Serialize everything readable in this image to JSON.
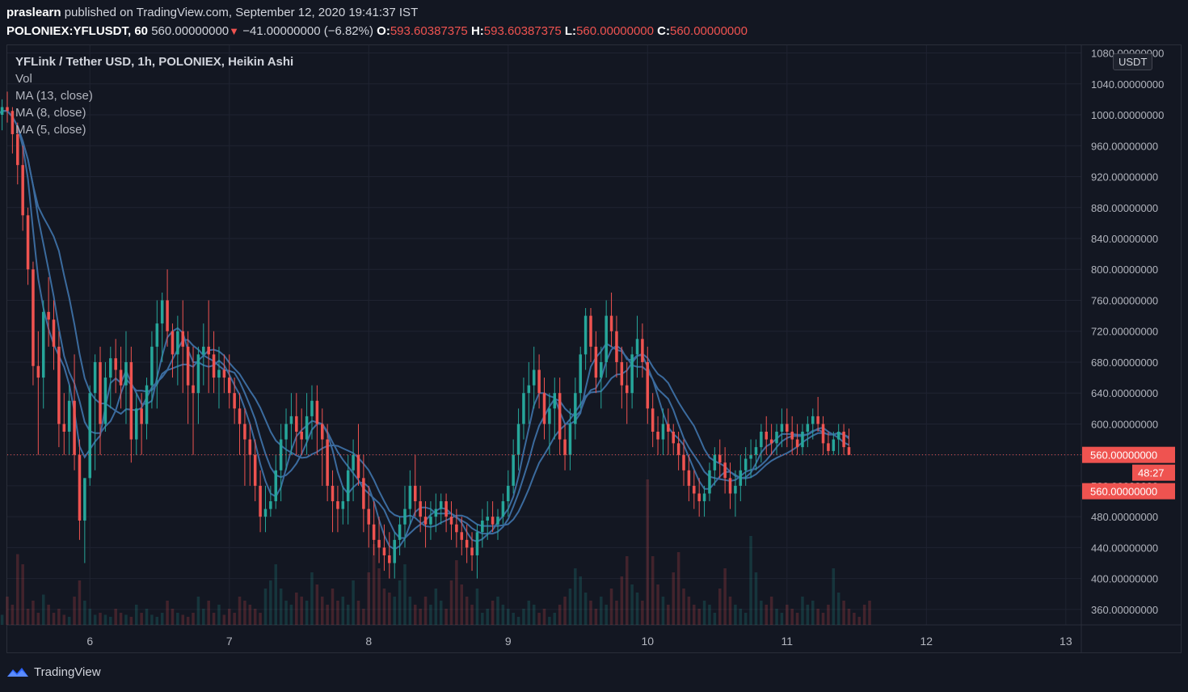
{
  "header": {
    "user": "praslearn",
    "published": " published on TradingView.com, September 12, 2020 19:41:37 IST",
    "symbol": "POLONIEX:YFLUSDT, 60",
    "last": "560.00000000",
    "change": "−41.00000000 (−6.82%)",
    "o_label": "O:",
    "o": "593.60387375",
    "h_label": "H:",
    "h": "593.60387375",
    "l_label": "L:",
    "l": "560.00000000",
    "c_label": "C:",
    "c": "560.00000000"
  },
  "legend": {
    "title": "YFLink / Tether USD, 1h, POLONIEX, Heikin Ashi",
    "vol": "Vol",
    "ma13": "MA (13, close)",
    "ma8": "MA (8, close)",
    "ma5": "MA (5, close)"
  },
  "logo_text": "TradingView",
  "unit_label": "USDT",
  "colors": {
    "up": "#26a69a",
    "down": "#ef5350",
    "ma": "#3b6b9e",
    "bg": "#131722",
    "grid": "#1f2331"
  },
  "chart_data": {
    "type": "candlestick",
    "title": "YFLink / Tether USD, 1h, POLONIEX, Heikin Ashi",
    "ylim": [
      340,
      1090
    ],
    "y_ticks": [
      "1080.00000000",
      "1040.00000000",
      "1000.00000000",
      "960.00000000",
      "920.00000000",
      "880.00000000",
      "840.00000000",
      "800.00000000",
      "760.00000000",
      "720.00000000",
      "680.00000000",
      "640.00000000",
      "600.00000000",
      "560.00000000",
      "520.00000000",
      "480.00000000",
      "440.00000000",
      "400.00000000",
      "360.00000000"
    ],
    "y_tick_values": [
      1080,
      1040,
      1000,
      960,
      920,
      880,
      840,
      800,
      760,
      720,
      680,
      640,
      600,
      560,
      520,
      480,
      440,
      400,
      360
    ],
    "x_ticks": [
      "6",
      "7",
      "8",
      "9",
      "10",
      "11",
      "12",
      "13"
    ],
    "x_tick_values": [
      18,
      45,
      72,
      99,
      126,
      153,
      180,
      207
    ],
    "x_range": [
      2,
      210
    ],
    "last_price_label": "560.00000000",
    "countdown_label": "48:27",
    "low_price_label": "560.00000000",
    "last_price": 560,
    "low_price_tag_value": 513,
    "candles": [
      [
        990,
        1015,
        960,
        1000
      ],
      [
        1000,
        1020,
        980,
        1010
      ],
      [
        1010,
        1030,
        990,
        1005
      ],
      [
        1005,
        1010,
        950,
        975
      ],
      [
        975,
        990,
        910,
        935
      ],
      [
        935,
        960,
        850,
        870
      ],
      [
        870,
        880,
        780,
        800
      ],
      [
        800,
        810,
        650,
        675
      ],
      [
        675,
        720,
        560,
        660
      ],
      [
        660,
        760,
        620,
        745
      ],
      [
        745,
        790,
        700,
        735
      ],
      [
        735,
        760,
        670,
        700
      ],
      [
        700,
        720,
        570,
        600
      ],
      [
        600,
        640,
        560,
        590
      ],
      [
        590,
        650,
        560,
        630
      ],
      [
        630,
        690,
        540,
        560
      ],
      [
        560,
        580,
        450,
        475
      ],
      [
        475,
        530,
        420,
        530
      ],
      [
        530,
        650,
        520,
        640
      ],
      [
        640,
        690,
        540,
        680
      ],
      [
        680,
        700,
        560,
        600
      ],
      [
        600,
        680,
        590,
        660
      ],
      [
        660,
        700,
        620,
        685
      ],
      [
        685,
        710,
        640,
        670
      ],
      [
        670,
        700,
        620,
        650
      ],
      [
        650,
        720,
        600,
        680
      ],
      [
        680,
        700,
        550,
        580
      ],
      [
        580,
        640,
        560,
        620
      ],
      [
        620,
        640,
        560,
        600
      ],
      [
        600,
        660,
        580,
        650
      ],
      [
        650,
        720,
        620,
        700
      ],
      [
        700,
        760,
        620,
        730
      ],
      [
        730,
        770,
        680,
        760
      ],
      [
        760,
        800,
        700,
        720
      ],
      [
        720,
        730,
        660,
        690
      ],
      [
        690,
        740,
        650,
        720
      ],
      [
        720,
        760,
        640,
        700
      ],
      [
        700,
        720,
        600,
        650
      ],
      [
        650,
        700,
        560,
        640
      ],
      [
        640,
        700,
        600,
        690
      ],
      [
        690,
        730,
        650,
        700
      ],
      [
        700,
        760,
        640,
        690
      ],
      [
        690,
        720,
        640,
        660
      ],
      [
        660,
        700,
        620,
        670
      ],
      [
        670,
        690,
        640,
        660
      ],
      [
        660,
        690,
        620,
        640
      ],
      [
        640,
        660,
        600,
        620
      ],
      [
        620,
        640,
        560,
        600
      ],
      [
        600,
        620,
        520,
        580
      ],
      [
        580,
        600,
        520,
        560
      ],
      [
        560,
        580,
        500,
        520
      ],
      [
        520,
        540,
        460,
        480
      ],
      [
        480,
        520,
        460,
        490
      ],
      [
        490,
        520,
        480,
        500
      ],
      [
        500,
        560,
        490,
        540
      ],
      [
        540,
        600,
        500,
        580
      ],
      [
        580,
        620,
        540,
        600
      ],
      [
        600,
        640,
        560,
        610
      ],
      [
        610,
        640,
        560,
        590
      ],
      [
        590,
        620,
        560,
        580
      ],
      [
        580,
        640,
        560,
        610
      ],
      [
        610,
        650,
        580,
        630
      ],
      [
        630,
        650,
        560,
        600
      ],
      [
        600,
        620,
        520,
        580
      ],
      [
        580,
        600,
        500,
        520
      ],
      [
        520,
        540,
        460,
        500
      ],
      [
        500,
        520,
        460,
        490
      ],
      [
        490,
        520,
        470,
        500
      ],
      [
        500,
        560,
        470,
        540
      ],
      [
        540,
        580,
        500,
        560
      ],
      [
        560,
        600,
        520,
        530
      ],
      [
        530,
        560,
        460,
        490
      ],
      [
        490,
        520,
        440,
        470
      ],
      [
        470,
        500,
        430,
        450
      ],
      [
        450,
        480,
        420,
        440
      ],
      [
        440,
        470,
        410,
        430
      ],
      [
        430,
        460,
        400,
        420
      ],
      [
        420,
        460,
        400,
        450
      ],
      [
        450,
        480,
        430,
        470
      ],
      [
        470,
        520,
        440,
        490
      ],
      [
        490,
        540,
        470,
        520
      ],
      [
        520,
        560,
        480,
        500
      ],
      [
        500,
        520,
        460,
        480
      ],
      [
        480,
        500,
        440,
        470
      ],
      [
        470,
        500,
        450,
        480
      ],
      [
        480,
        510,
        460,
        490
      ],
      [
        490,
        510,
        470,
        500
      ],
      [
        500,
        510,
        460,
        480
      ],
      [
        480,
        500,
        450,
        470
      ],
      [
        470,
        490,
        440,
        460
      ],
      [
        460,
        480,
        430,
        450
      ],
      [
        450,
        470,
        420,
        440
      ],
      [
        440,
        460,
        410,
        430
      ],
      [
        430,
        470,
        400,
        460
      ],
      [
        460,
        490,
        440,
        475
      ],
      [
        475,
        500,
        450,
        480
      ],
      [
        480,
        500,
        460,
        470
      ],
      [
        470,
        490,
        450,
        480
      ],
      [
        480,
        510,
        470,
        500
      ],
      [
        500,
        540,
        480,
        520
      ],
      [
        520,
        580,
        510,
        560
      ],
      [
        560,
        620,
        540,
        600
      ],
      [
        600,
        660,
        580,
        640
      ],
      [
        640,
        680,
        600,
        650
      ],
      [
        650,
        700,
        620,
        670
      ],
      [
        670,
        690,
        620,
        640
      ],
      [
        640,
        660,
        580,
        600
      ],
      [
        600,
        640,
        560,
        620
      ],
      [
        620,
        660,
        580,
        640
      ],
      [
        640,
        660,
        560,
        580
      ],
      [
        580,
        600,
        540,
        560
      ],
      [
        560,
        620,
        540,
        600
      ],
      [
        600,
        660,
        580,
        640
      ],
      [
        640,
        700,
        620,
        690
      ],
      [
        690,
        750,
        670,
        740
      ],
      [
        740,
        750,
        680,
        700
      ],
      [
        700,
        720,
        640,
        660
      ],
      [
        660,
        700,
        620,
        680
      ],
      [
        680,
        760,
        660,
        740
      ],
      [
        740,
        770,
        700,
        720
      ],
      [
        720,
        740,
        660,
        680
      ],
      [
        680,
        700,
        620,
        650
      ],
      [
        650,
        680,
        600,
        640
      ],
      [
        640,
        700,
        620,
        690
      ],
      [
        690,
        740,
        660,
        710
      ],
      [
        710,
        730,
        660,
        680
      ],
      [
        680,
        700,
        600,
        620
      ],
      [
        620,
        640,
        570,
        590
      ],
      [
        590,
        610,
        560,
        580
      ],
      [
        580,
        620,
        560,
        600
      ],
      [
        600,
        620,
        560,
        590
      ],
      [
        590,
        600,
        560,
        575
      ],
      [
        575,
        590,
        540,
        560
      ],
      [
        560,
        580,
        520,
        540
      ],
      [
        540,
        560,
        500,
        520
      ],
      [
        520,
        540,
        490,
        510
      ],
      [
        510,
        530,
        480,
        500
      ],
      [
        500,
        520,
        480,
        510
      ],
      [
        510,
        550,
        500,
        540
      ],
      [
        540,
        570,
        520,
        560
      ],
      [
        560,
        580,
        530,
        550
      ],
      [
        550,
        570,
        510,
        530
      ],
      [
        530,
        550,
        490,
        510
      ],
      [
        510,
        540,
        480,
        520
      ],
      [
        520,
        560,
        500,
        540
      ],
      [
        540,
        570,
        520,
        555
      ],
      [
        555,
        580,
        530,
        560
      ],
      [
        560,
        580,
        540,
        570
      ],
      [
        570,
        600,
        550,
        590
      ],
      [
        590,
        610,
        560,
        580
      ],
      [
        580,
        600,
        560,
        575
      ],
      [
        575,
        600,
        560,
        590
      ],
      [
        590,
        620,
        570,
        600
      ],
      [
        600,
        620,
        570,
        590
      ],
      [
        590,
        610,
        560,
        580
      ],
      [
        580,
        600,
        560,
        570
      ],
      [
        570,
        600,
        560,
        590
      ],
      [
        590,
        610,
        570,
        600
      ],
      [
        600,
        620,
        580,
        610
      ],
      [
        610,
        635,
        590,
        600
      ],
      [
        600,
        610,
        560,
        575
      ],
      [
        575,
        590,
        560,
        565
      ],
      [
        565,
        590,
        560,
        580
      ],
      [
        580,
        600,
        560,
        590
      ],
      [
        590,
        600,
        560,
        570
      ],
      [
        570,
        594,
        560,
        560
      ]
    ],
    "volume": [
      6,
      5,
      14,
      10,
      35,
      30,
      8,
      12,
      6,
      15,
      10,
      6,
      8,
      5,
      4,
      14,
      22,
      12,
      8,
      5,
      6,
      5,
      4,
      8,
      6,
      5,
      4,
      10,
      6,
      8,
      5,
      4,
      6,
      12,
      8,
      6,
      5,
      4,
      6,
      14,
      8,
      12,
      6,
      10,
      5,
      8,
      6,
      14,
      12,
      10,
      8,
      6,
      18,
      22,
      30,
      18,
      12,
      10,
      16,
      14,
      12,
      26,
      20,
      14,
      10,
      18,
      12,
      14,
      10,
      22,
      12,
      8,
      26,
      40,
      28,
      18,
      16,
      14,
      22,
      30,
      14,
      10,
      8,
      14,
      10,
      18,
      12,
      8,
      22,
      32,
      20,
      14,
      10,
      18,
      6,
      8,
      12,
      14,
      10,
      8,
      6,
      4,
      8,
      12,
      10,
      6,
      8,
      4,
      6,
      10,
      14,
      18,
      28,
      24,
      16,
      12,
      8,
      14,
      10,
      18,
      12,
      24,
      34,
      20,
      16,
      12,
      72,
      34,
      20,
      14,
      10,
      26,
      36,
      18,
      14,
      10,
      8,
      12,
      10,
      6,
      18,
      28,
      14,
      10,
      8,
      6,
      44,
      26,
      12,
      10,
      14,
      8,
      6,
      10,
      8,
      6,
      14,
      10,
      12,
      8,
      6,
      10,
      28,
      16,
      12,
      8,
      6,
      4,
      10,
      12
    ]
  }
}
